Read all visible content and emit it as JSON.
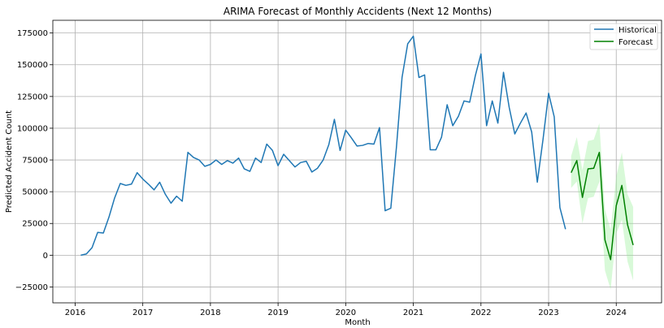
{
  "chart_data": {
    "type": "line",
    "title": "ARIMA Forecast of Monthly Accidents (Next 12 Months)",
    "xlabel": "Month",
    "ylabel": "Predicted Accident Count",
    "xlim": [
      2015.67,
      2024.67
    ],
    "ylim": [
      -37500,
      185000
    ],
    "x_ticks": [
      2016,
      2017,
      2018,
      2019,
      2020,
      2021,
      2022,
      2023,
      2024
    ],
    "x_tick_labels": [
      "2016",
      "2017",
      "2018",
      "2019",
      "2020",
      "2021",
      "2022",
      "2023",
      "2024"
    ],
    "y_ticks": [
      -25000,
      0,
      25000,
      50000,
      75000,
      100000,
      125000,
      150000,
      175000
    ],
    "y_tick_labels": [
      "−25000",
      "0",
      "25000",
      "50000",
      "75000",
      "100000",
      "125000",
      "150000",
      "175000"
    ],
    "grid": true,
    "legend_position": "top-right",
    "series": [
      {
        "name": "Historical",
        "color": "#1f77b4",
        "x": [
          2016.083,
          2016.167,
          2016.25,
          2016.333,
          2016.417,
          2016.5,
          2016.583,
          2016.667,
          2016.75,
          2016.833,
          2016.917,
          2017.0,
          2017.083,
          2017.167,
          2017.25,
          2017.333,
          2017.417,
          2017.5,
          2017.583,
          2017.667,
          2017.75,
          2017.833,
          2017.917,
          2018.0,
          2018.083,
          2018.167,
          2018.25,
          2018.333,
          2018.417,
          2018.5,
          2018.583,
          2018.667,
          2018.75,
          2018.833,
          2018.917,
          2019.0,
          2019.083,
          2019.167,
          2019.25,
          2019.333,
          2019.417,
          2019.5,
          2019.583,
          2019.667,
          2019.75,
          2019.833,
          2019.917,
          2020.0,
          2020.083,
          2020.167,
          2020.25,
          2020.333,
          2020.417,
          2020.5,
          2020.583,
          2020.667,
          2020.75,
          2020.833,
          2020.917,
          2021.0,
          2021.083,
          2021.167,
          2021.25,
          2021.333,
          2021.417,
          2021.5,
          2021.583,
          2021.667,
          2021.75,
          2021.833,
          2021.917,
          2022.0,
          2022.083,
          2022.167,
          2022.25,
          2022.333,
          2022.417,
          2022.5,
          2022.583,
          2022.667,
          2022.75,
          2022.833,
          2022.917,
          2023.0,
          2023.083,
          2023.167,
          2023.25
        ],
        "values": [
          0,
          1000,
          6000,
          18000,
          17500,
          30000,
          45000,
          56500,
          55000,
          56000,
          65000,
          60000,
          56000,
          51500,
          57500,
          48000,
          41000,
          46500,
          42500,
          81000,
          77000,
          75000,
          70000,
          71500,
          75000,
          71500,
          74500,
          72500,
          76500,
          68000,
          66000,
          76500,
          73000,
          87500,
          82500,
          70500,
          79500,
          74500,
          69500,
          73000,
          74000,
          65500,
          68500,
          75000,
          87000,
          107000,
          82500,
          98500,
          92500,
          86000,
          86500,
          88000,
          87500,
          100500,
          35000,
          37000,
          85000,
          140000,
          166500,
          172500,
          140000,
          142000,
          83000,
          83000,
          93000,
          118500,
          102000,
          109500,
          121500,
          120500,
          141500,
          158500,
          102000,
          121500,
          104000,
          144000,
          116500,
          95500,
          104000,
          112000,
          97000,
          57500,
          91000,
          127500,
          109000,
          37500,
          20500
        ]
      },
      {
        "name": "Forecast",
        "color": "#008000",
        "band_color": "#90ee90",
        "x": [
          2023.333,
          2023.417,
          2023.5,
          2023.583,
          2023.667,
          2023.75,
          2023.833,
          2023.917,
          2024.0,
          2024.083,
          2024.167,
          2024.25
        ],
        "values": [
          65000,
          74500,
          45500,
          68000,
          68500,
          81000,
          12000,
          -3500,
          39000,
          55000,
          24000,
          8000
        ],
        "lower": [
          53000,
          58000,
          25000,
          45000,
          46000,
          58000,
          -12000,
          -27000,
          17000,
          28000,
          -5000,
          -20000
        ],
        "upper": [
          78000,
          93000,
          67000,
          90000,
          91000,
          104000,
          36000,
          20000,
          62000,
          81000,
          48000,
          38000
        ]
      }
    ]
  }
}
